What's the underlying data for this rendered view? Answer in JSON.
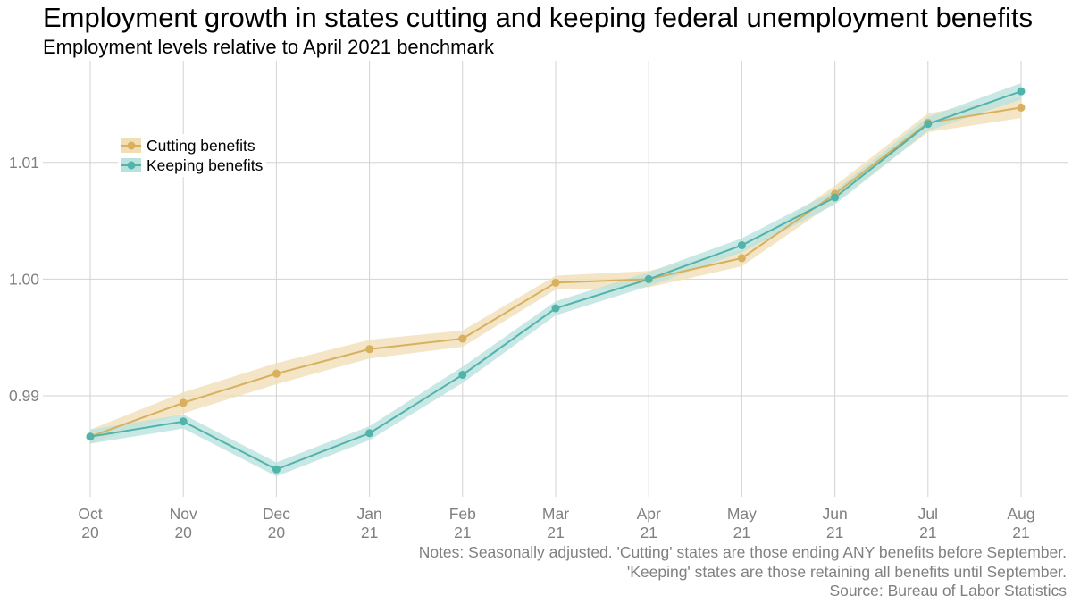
{
  "title": "Employment growth in states cutting and keeping federal unemployment benefits",
  "subtitle": "Employment levels relative to April 2021 benchmark",
  "notes": [
    "Notes: Seasonally adjusted. 'Cutting' states are those ending ANY benefits before September.",
    "'Keeping' states are those retaining all benefits until September.",
    "Source: Bureau of Labor Statistics"
  ],
  "colors": {
    "cutting": "#d8b05e",
    "keeping": "#52b3aa",
    "cutting_band": "#f0dfb6",
    "keeping_band": "#b9e2dd",
    "grid": "#d3d3d3",
    "tick_text": "#808080"
  },
  "chart_data": {
    "type": "line",
    "title": "Employment growth in states cutting and keeping federal unemployment benefits",
    "subtitle": "Employment levels relative to April 2021 benchmark",
    "xlabel": "",
    "ylabel": "",
    "categories": [
      [
        "Oct",
        "20"
      ],
      [
        "Nov",
        "20"
      ],
      [
        "Dec",
        "20"
      ],
      [
        "Jan",
        "21"
      ],
      [
        "Feb",
        "21"
      ],
      [
        "Mar",
        "21"
      ],
      [
        "Apr",
        "21"
      ],
      [
        "May",
        "21"
      ],
      [
        "Jun",
        "21"
      ],
      [
        "Jul",
        "21"
      ],
      [
        "Aug",
        "21"
      ]
    ],
    "y_ticks": [
      0.99,
      1.0,
      1.01
    ],
    "y_tick_labels": [
      "0.99",
      "1.00",
      "1.01"
    ],
    "ylim": [
      0.9808,
      1.0187
    ],
    "grid": true,
    "legend_position": "top-left",
    "series": [
      {
        "name": "Cutting benefits",
        "color_key": "cutting",
        "values": [
          0.9865,
          0.9894,
          0.9919,
          0.994,
          0.9949,
          0.9997,
          1.0,
          1.0018,
          1.0073,
          1.0134,
          1.0147
        ],
        "lower": [
          0.9859,
          0.9885,
          0.991,
          0.9932,
          0.9942,
          0.9991,
          0.9993,
          1.0011,
          1.0066,
          1.0126,
          1.0138
        ],
        "upper": [
          0.9871,
          0.9903,
          0.9928,
          0.9948,
          0.9956,
          1.0003,
          1.0007,
          1.0025,
          1.008,
          1.0142,
          1.0156
        ]
      },
      {
        "name": "Keeping benefits",
        "color_key": "keeping",
        "values": [
          0.9865,
          0.9878,
          0.9837,
          0.9868,
          0.9918,
          0.9975,
          1.0,
          1.0029,
          1.007,
          1.0133,
          1.0161
        ],
        "lower": [
          0.9859,
          0.9872,
          0.9831,
          0.9862,
          0.9911,
          0.9969,
          0.9994,
          1.0023,
          1.0064,
          1.0127,
          1.0154
        ],
        "upper": [
          0.9871,
          0.9884,
          0.9843,
          0.9874,
          0.9925,
          0.9981,
          1.0006,
          1.0035,
          1.0076,
          1.0139,
          1.0168
        ]
      }
    ]
  }
}
